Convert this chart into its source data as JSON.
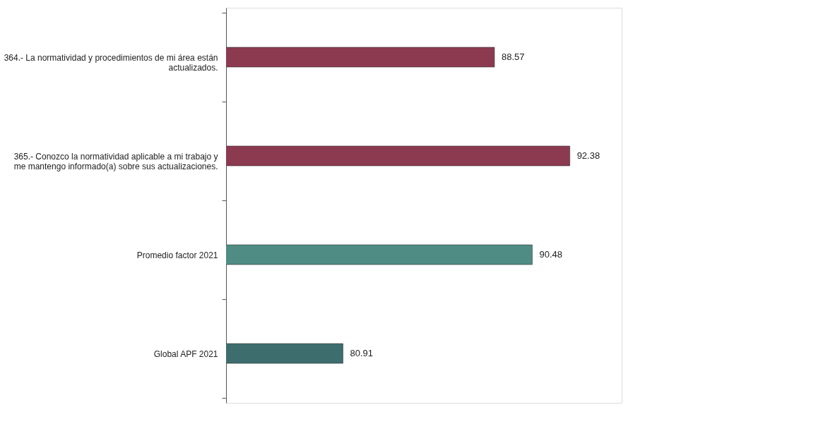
{
  "chart_data": {
    "type": "bar",
    "orientation": "horizontal",
    "categories": [
      "364.- La normatividad y procedimientos de mi área están actualizados.",
      "365.- Conozco la normatividad aplicable a mi trabajo y me mantengo informado(a) sobre sus actualizaciones.",
      "Promedio factor 2021",
      "Global APF 2021"
    ],
    "values": [
      88.57,
      92.38,
      90.48,
      80.91
    ],
    "colors": [
      "#8b3a50",
      "#8b3a50",
      "#4f8c84",
      "#3e6d6e"
    ],
    "xlim": [
      75,
      95
    ],
    "data_labels": true,
    "tick_labels": "y"
  }
}
